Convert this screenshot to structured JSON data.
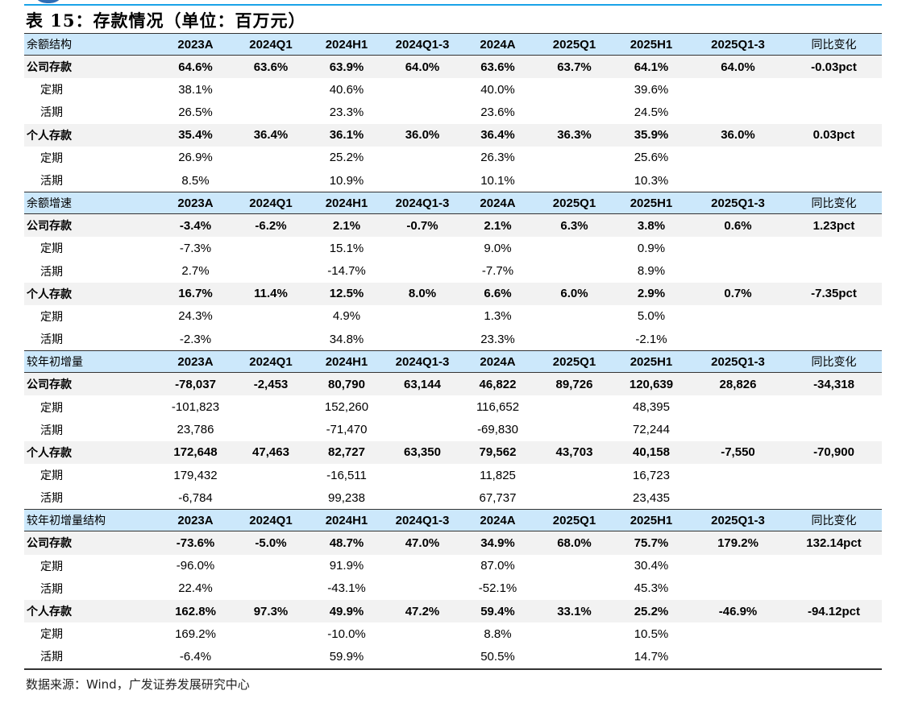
{
  "title": "表 15：存款情况（单位：百万元）",
  "columns": [
    "2023A",
    "2024Q1",
    "2024H1",
    "2024Q1-3",
    "2024A",
    "2025Q1",
    "2025H1",
    "2025Q1-3",
    "同比变化"
  ],
  "sections": [
    {
      "header": "余额结构",
      "rows": [
        {
          "label": "公司存款",
          "bold": true,
          "values": [
            "64.6%",
            "63.6%",
            "63.9%",
            "64.0%",
            "63.6%",
            "63.7%",
            "64.1%",
            "64.0%",
            "-0.03pct"
          ]
        },
        {
          "label": "定期",
          "bold": false,
          "values": [
            "38.1%",
            "",
            "40.6%",
            "",
            "40.0%",
            "",
            "39.6%",
            "",
            ""
          ]
        },
        {
          "label": "活期",
          "bold": false,
          "values": [
            "26.5%",
            "",
            "23.3%",
            "",
            "23.6%",
            "",
            "24.5%",
            "",
            ""
          ]
        },
        {
          "label": "个人存款",
          "bold": true,
          "values": [
            "35.4%",
            "36.4%",
            "36.1%",
            "36.0%",
            "36.4%",
            "36.3%",
            "35.9%",
            "36.0%",
            "0.03pct"
          ]
        },
        {
          "label": "定期",
          "bold": false,
          "values": [
            "26.9%",
            "",
            "25.2%",
            "",
            "26.3%",
            "",
            "25.6%",
            "",
            ""
          ]
        },
        {
          "label": "活期",
          "bold": false,
          "values": [
            "8.5%",
            "",
            "10.9%",
            "",
            "10.1%",
            "",
            "10.3%",
            "",
            ""
          ]
        }
      ]
    },
    {
      "header": "余额增速",
      "rows": [
        {
          "label": "公司存款",
          "bold": true,
          "values": [
            "-3.4%",
            "-6.2%",
            "2.1%",
            "-0.7%",
            "2.1%",
            "6.3%",
            "3.8%",
            "0.6%",
            "1.23pct"
          ]
        },
        {
          "label": "定期",
          "bold": false,
          "values": [
            "-7.3%",
            "",
            "15.1%",
            "",
            "9.0%",
            "",
            "0.9%",
            "",
            ""
          ]
        },
        {
          "label": "活期",
          "bold": false,
          "values": [
            "2.7%",
            "",
            "-14.7%",
            "",
            "-7.7%",
            "",
            "8.9%",
            "",
            ""
          ]
        },
        {
          "label": "个人存款",
          "bold": true,
          "values": [
            "16.7%",
            "11.4%",
            "12.5%",
            "8.0%",
            "6.6%",
            "6.0%",
            "2.9%",
            "0.7%",
            "-7.35pct"
          ]
        },
        {
          "label": "定期",
          "bold": false,
          "values": [
            "24.3%",
            "",
            "4.9%",
            "",
            "1.3%",
            "",
            "5.0%",
            "",
            ""
          ]
        },
        {
          "label": "活期",
          "bold": false,
          "values": [
            "-2.3%",
            "",
            "34.8%",
            "",
            "23.3%",
            "",
            "-2.1%",
            "",
            ""
          ]
        }
      ]
    },
    {
      "header": "较年初增量",
      "rows": [
        {
          "label": "公司存款",
          "bold": true,
          "values": [
            "-78,037",
            "-2,453",
            "80,790",
            "63,144",
            "46,822",
            "89,726",
            "120,639",
            "28,826",
            "-34,318"
          ]
        },
        {
          "label": "定期",
          "bold": false,
          "values": [
            "-101,823",
            "",
            "152,260",
            "",
            "116,652",
            "",
            "48,395",
            "",
            ""
          ]
        },
        {
          "label": "活期",
          "bold": false,
          "values": [
            "23,786",
            "",
            "-71,470",
            "",
            "-69,830",
            "",
            "72,244",
            "",
            ""
          ]
        },
        {
          "label": "个人存款",
          "bold": true,
          "values": [
            "172,648",
            "47,463",
            "82,727",
            "63,350",
            "79,562",
            "43,703",
            "40,158",
            "-7,550",
            "-70,900"
          ]
        },
        {
          "label": "定期",
          "bold": false,
          "values": [
            "179,432",
            "",
            "-16,511",
            "",
            "11,825",
            "",
            "16,723",
            "",
            ""
          ]
        },
        {
          "label": "活期",
          "bold": false,
          "values": [
            "-6,784",
            "",
            "99,238",
            "",
            "67,737",
            "",
            "23,435",
            "",
            ""
          ]
        }
      ]
    },
    {
      "header": "较年初增量结构",
      "rows": [
        {
          "label": "公司存款",
          "bold": true,
          "values": [
            "-73.6%",
            "-5.0%",
            "48.7%",
            "47.0%",
            "34.9%",
            "68.0%",
            "75.7%",
            "179.2%",
            "132.14pct"
          ]
        },
        {
          "label": "定期",
          "bold": false,
          "values": [
            "-96.0%",
            "",
            "91.9%",
            "",
            "87.0%",
            "",
            "30.4%",
            "",
            ""
          ]
        },
        {
          "label": "活期",
          "bold": false,
          "values": [
            "22.4%",
            "",
            "-43.1%",
            "",
            "-52.1%",
            "",
            "45.3%",
            "",
            ""
          ]
        },
        {
          "label": "个人存款",
          "bold": true,
          "values": [
            "162.8%",
            "97.3%",
            "49.9%",
            "47.2%",
            "59.4%",
            "33.1%",
            "25.2%",
            "-46.9%",
            "-94.12pct"
          ]
        },
        {
          "label": "定期",
          "bold": false,
          "values": [
            "169.2%",
            "",
            "-10.0%",
            "",
            "8.8%",
            "",
            "10.5%",
            "",
            ""
          ]
        },
        {
          "label": "活期",
          "bold": false,
          "values": [
            "-6.4%",
            "",
            "59.9%",
            "",
            "50.5%",
            "",
            "14.7%",
            "",
            ""
          ]
        }
      ]
    }
  ],
  "source": "数据来源：Wind，广发证券发展研究中心",
  "colors": {
    "header_bg": "#cce8fb",
    "bold_row_bg": "#f2f2f2",
    "accent_line": "#1aa3e8"
  }
}
